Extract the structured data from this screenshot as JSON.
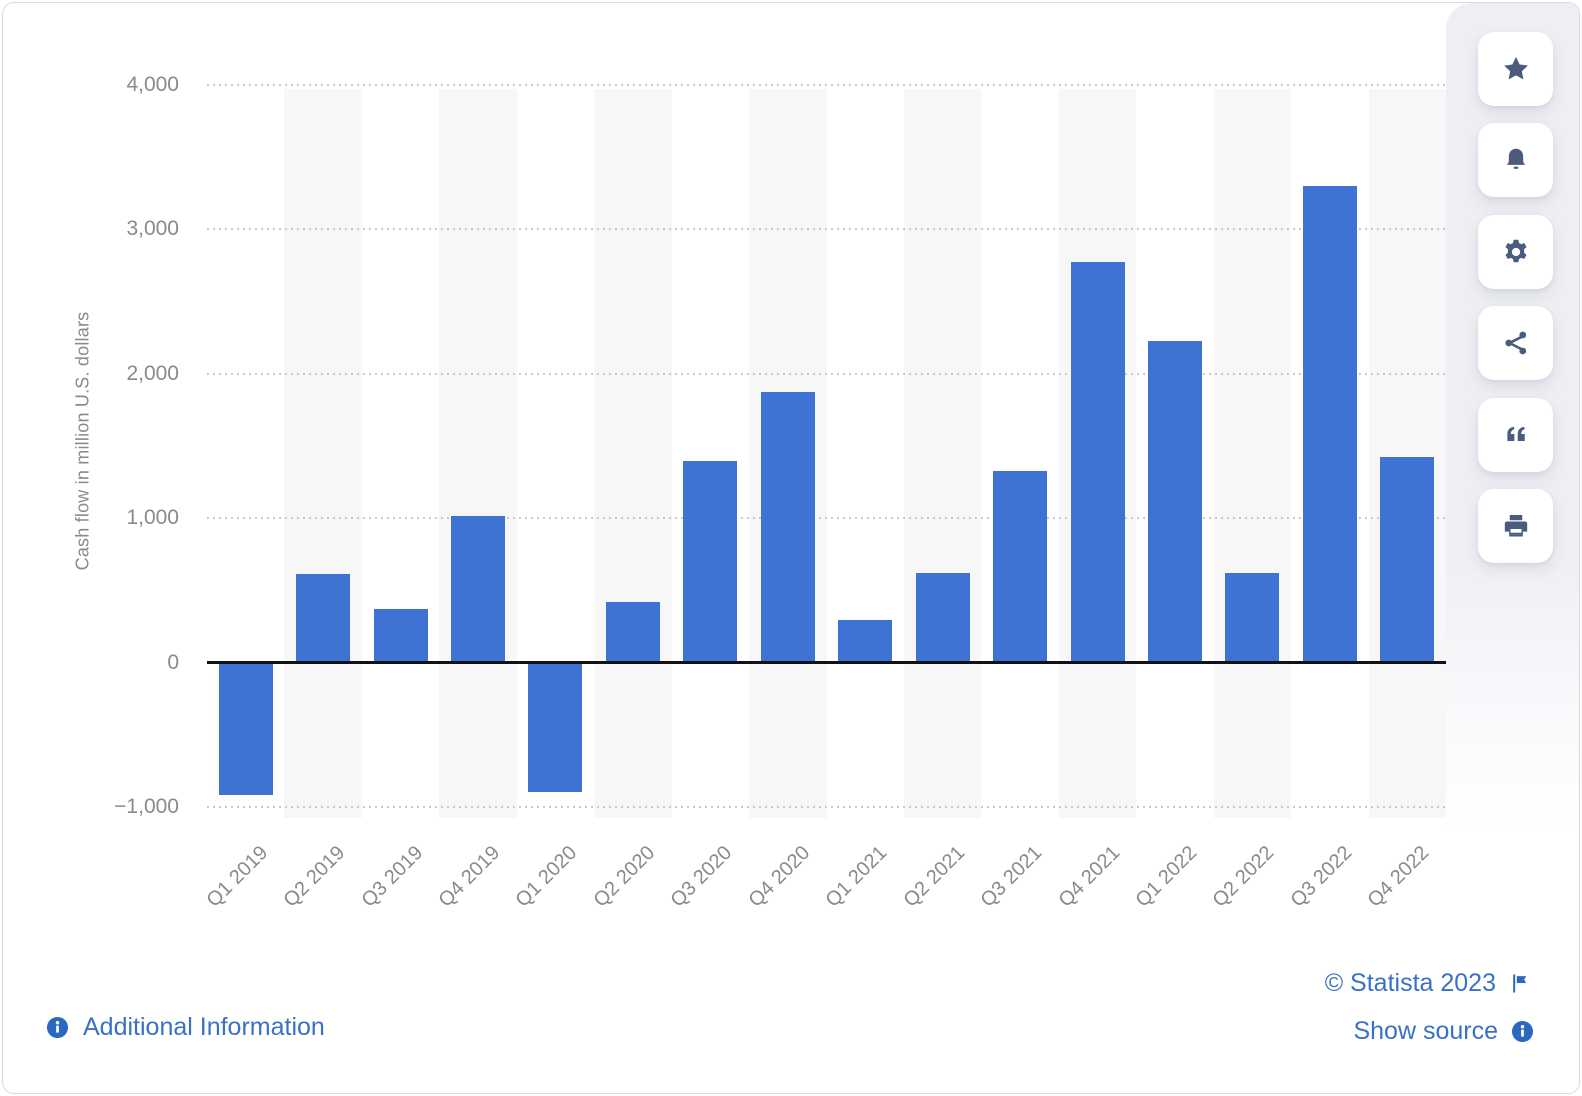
{
  "chart_data": {
    "type": "bar",
    "title": "",
    "categories": [
      "Q1 2019",
      "Q2 2019",
      "Q3 2019",
      "Q4 2019",
      "Q1 2020",
      "Q2 2020",
      "Q3 2020",
      "Q4 2020",
      "Q1 2021",
      "Q2 2021",
      "Q3 2021",
      "Q4 2021",
      "Q1 2022",
      "Q2 2022",
      "Q3 2022",
      "Q4 2022"
    ],
    "values": [
      -920,
      614,
      371,
      1013,
      -895,
      418,
      1395,
      1870,
      293,
      619,
      1328,
      2775,
      2228,
      621,
      3297,
      1420
    ],
    "xlabel": "",
    "ylabel": "Cash flow in million U.S. dollars",
    "ylim": [
      -1000,
      4000
    ],
    "yticks": [
      {
        "label": "4,000",
        "value": 4000
      },
      {
        "label": "3,000",
        "value": 3000
      },
      {
        "label": "2,000",
        "value": 2000
      },
      {
        "label": "1,000",
        "value": 1000
      },
      {
        "label": "0",
        "value": 0
      },
      {
        "label": "−1,000",
        "value": -1000
      }
    ],
    "grid": true,
    "legend": false,
    "bar_color": "#3e72d3"
  },
  "toolbar": {
    "buttons": [
      {
        "name": "favorite-button",
        "icon": "star-icon"
      },
      {
        "name": "alert-button",
        "icon": "bell-icon"
      },
      {
        "name": "settings-button",
        "icon": "gear-icon"
      },
      {
        "name": "share-button",
        "icon": "share-icon"
      },
      {
        "name": "cite-button",
        "icon": "quote-icon"
      },
      {
        "name": "print-button",
        "icon": "printer-icon"
      }
    ]
  },
  "footer": {
    "additional_information": {
      "label": "Additional Information",
      "icon": "info-icon"
    },
    "copyright": {
      "label": "© Statista 2023",
      "icon": "flag-icon"
    },
    "show_source": {
      "label": "Show source",
      "icon": "info-icon"
    }
  },
  "colors": {
    "bar": "#3e72d3",
    "link": "#3a70c8",
    "icon_accent": "#2c68c2",
    "toolbar_icon": "#4a5c7d",
    "axis_text": "#8a8a8a",
    "stripe": "#f7f7f8",
    "grid_dot": "#c9c9c9",
    "rail_bg": "#edeff3",
    "zero_line": "#121216"
  }
}
